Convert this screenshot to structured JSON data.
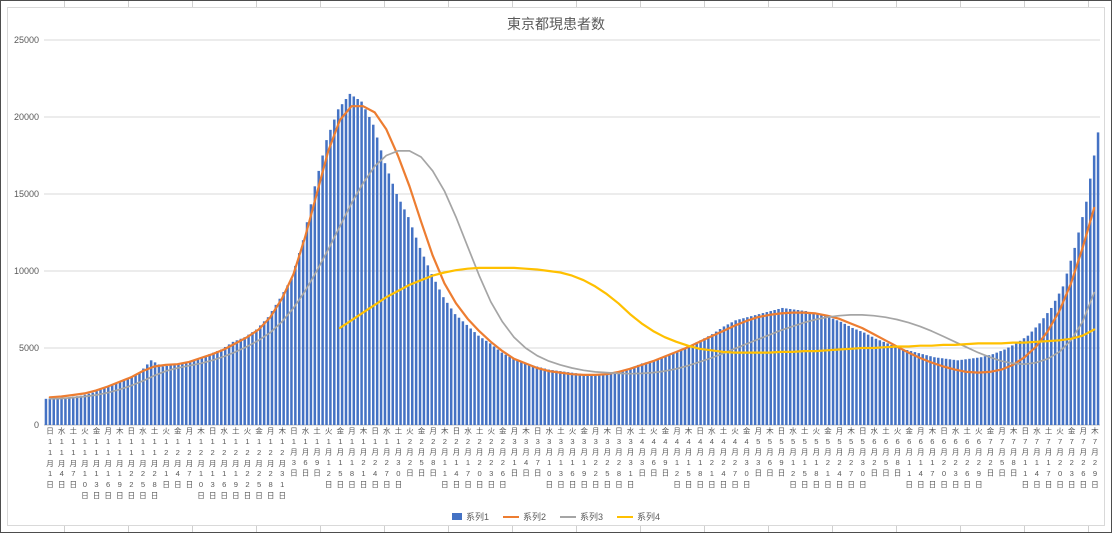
{
  "chart_data": {
    "type": "bar",
    "title": "東京都現患者数",
    "grid": true,
    "legend_position": "bottom",
    "colors": {
      "bar_blue": "#4472C4",
      "line_orange": "#ED7D31",
      "line_gray": "#A5A5A5",
      "line_yellow": "#FFC000",
      "gridline": "#D9D9D9",
      "axis_text": "#595959"
    },
    "y_axis": {
      "min": 0,
      "max": 25000,
      "step": 5000,
      "tick_labels": [
        "0",
        "5000",
        "10000",
        "15000",
        "20000",
        "25000"
      ]
    },
    "categories": [
      "日11月1日",
      "水11月4日",
      "土11月7日",
      "火11月10日",
      "金11月13日",
      "月11月16日",
      "木11月19日",
      "日11月22日",
      "水11月25日",
      "土11月28日",
      "火12月1日",
      "金12月4日",
      "月12月7日",
      "木12月10日",
      "日12月13日",
      "水12月16日",
      "土12月19日",
      "火12月22日",
      "金12月25日",
      "月12月28日",
      "木12月31日",
      "日1月3日",
      "水1月6日",
      "土1月9日",
      "火1月12日",
      "金1月15日",
      "月1月18日",
      "木1月21日",
      "日1月24日",
      "水1月27日",
      "土1月30日",
      "火2月2日",
      "金2月5日",
      "月2月8日",
      "木2月11日",
      "日2月14日",
      "水2月17日",
      "土2月20日",
      "火2月23日",
      "金2月26日",
      "月3月1日",
      "木3月4日",
      "日3月7日",
      "水3月10日",
      "土3月13日",
      "火3月16日",
      "金3月19日",
      "月3月22日",
      "木3月25日",
      "日3月28日",
      "水3月31日",
      "土4月3日",
      "火4月6日",
      "金4月9日",
      "月4月12日",
      "木4月15日",
      "日4月18日",
      "水4月21日",
      "土4月24日",
      "火4月27日",
      "金4月30日",
      "月5月3日",
      "木5月6日",
      "日5月9日",
      "水5月12日",
      "土5月15日",
      "火5月18日",
      "金5月21日",
      "月5月24日",
      "木5月27日",
      "日5月30日",
      "水6月2日",
      "土6月5日",
      "火6月8日",
      "金6月11日",
      "月6月14日",
      "木6月17日",
      "日6月20日",
      "水6月23日",
      "土6月26日",
      "火6月29日",
      "金7月2日",
      "月7月5日",
      "木7月8日",
      "日7月11日",
      "水7月14日",
      "土7月17日",
      "火7月20日",
      "金7月23日",
      "月7月26日",
      "木7月29日"
    ],
    "series": [
      {
        "name": "系列1",
        "type": "bar",
        "color": "#4472C4",
        "values": [
          1700,
          1750,
          1800,
          1900,
          2100,
          2400,
          2700,
          3000,
          3400,
          4200,
          3800,
          3900,
          4000,
          4300,
          4600,
          4900,
          5400,
          5700,
          6200,
          7000,
          8200,
          9500,
          12000,
          15500,
          18500,
          20500,
          21500,
          21000,
          19500,
          17000,
          15000,
          13500,
          11500,
          9800,
          8300,
          7200,
          6500,
          5800,
          5300,
          4700,
          4300,
          4000,
          3800,
          3600,
          3500,
          3400,
          3300,
          3250,
          3300,
          3500,
          3700,
          4000,
          4200,
          4500,
          4800,
          5100,
          5500,
          5900,
          6400,
          6800,
          7000,
          7200,
          7400,
          7600,
          7500,
          7400,
          7200,
          7000,
          6700,
          6300,
          6000,
          5600,
          5300,
          5000,
          4800,
          4600,
          4400,
          4300,
          4200,
          4300,
          4400,
          4600,
          4900,
          5300,
          5800,
          6600,
          7600,
          9000,
          11500,
          14500,
          19000
        ]
      },
      {
        "name": "系列2",
        "type": "line",
        "color": "#ED7D31",
        "values": [
          1800,
          1850,
          1950,
          2050,
          2250,
          2500,
          2800,
          3100,
          3500,
          3800,
          3900,
          3950,
          4100,
          4350,
          4600,
          4900,
          5300,
          5700,
          6200,
          7000,
          8200,
          9800,
          12200,
          15000,
          17800,
          19800,
          20700,
          20700,
          20300,
          19200,
          17500,
          15500,
          13200,
          11000,
          9200,
          7900,
          6900,
          6100,
          5400,
          4800,
          4300,
          4000,
          3700,
          3500,
          3400,
          3300,
          3250,
          3250,
          3300,
          3450,
          3650,
          3900,
          4150,
          4450,
          4750,
          5050,
          5400,
          5750,
          6100,
          6450,
          6750,
          7000,
          7150,
          7250,
          7300,
          7300,
          7250,
          7100,
          6900,
          6600,
          6300,
          5900,
          5500,
          5100,
          4700,
          4350,
          4050,
          3800,
          3600,
          3450,
          3400,
          3450,
          3600,
          3900,
          4400,
          5100,
          6100,
          7400,
          9200,
          11500,
          14100
        ]
      },
      {
        "name": "系列3",
        "type": "line",
        "color": "#A5A5A5",
        "values": [
          1700,
          1720,
          1780,
          1850,
          1950,
          2100,
          2300,
          2550,
          2850,
          3200,
          3500,
          3700,
          3850,
          4000,
          4200,
          4450,
          4750,
          5100,
          5500,
          6000,
          6700,
          7600,
          8700,
          10000,
          11400,
          12900,
          14400,
          15700,
          16800,
          17500,
          17800,
          17800,
          17400,
          16500,
          15200,
          13500,
          11600,
          9700,
          8000,
          6700,
          5700,
          5000,
          4500,
          4150,
          3900,
          3700,
          3550,
          3450,
          3400,
          3350,
          3330,
          3350,
          3400,
          3500,
          3650,
          3850,
          4100,
          4350,
          4650,
          4950,
          5250,
          5550,
          5850,
          6150,
          6400,
          6650,
          6850,
          7000,
          7100,
          7150,
          7150,
          7100,
          7000,
          6850,
          6650,
          6400,
          6100,
          5750,
          5400,
          5050,
          4700,
          4400,
          4150,
          4000,
          3950,
          4050,
          4300,
          4750,
          5500,
          6700,
          8600
        ]
      },
      {
        "name": "系列4",
        "type": "line",
        "color": "#FFC000",
        "values": [
          null,
          null,
          null,
          null,
          null,
          null,
          null,
          null,
          null,
          null,
          null,
          null,
          null,
          null,
          null,
          null,
          null,
          null,
          null,
          null,
          null,
          null,
          null,
          null,
          null,
          6300,
          6800,
          7300,
          7800,
          8300,
          8700,
          9100,
          9400,
          9700,
          9900,
          10050,
          10150,
          10200,
          10200,
          10200,
          10200,
          10150,
          10100,
          10000,
          9900,
          9700,
          9400,
          9000,
          8500,
          7900,
          7200,
          6600,
          6100,
          5700,
          5400,
          5150,
          4950,
          4850,
          4750,
          4700,
          4700,
          4700,
          4700,
          4750,
          4750,
          4800,
          4800,
          4850,
          4900,
          4950,
          5000,
          5000,
          5050,
          5100,
          5100,
          5150,
          5150,
          5200,
          5200,
          5250,
          5300,
          5300,
          5300,
          5350,
          5350,
          5400,
          5450,
          5500,
          5600,
          5800,
          6200
        ]
      }
    ]
  }
}
